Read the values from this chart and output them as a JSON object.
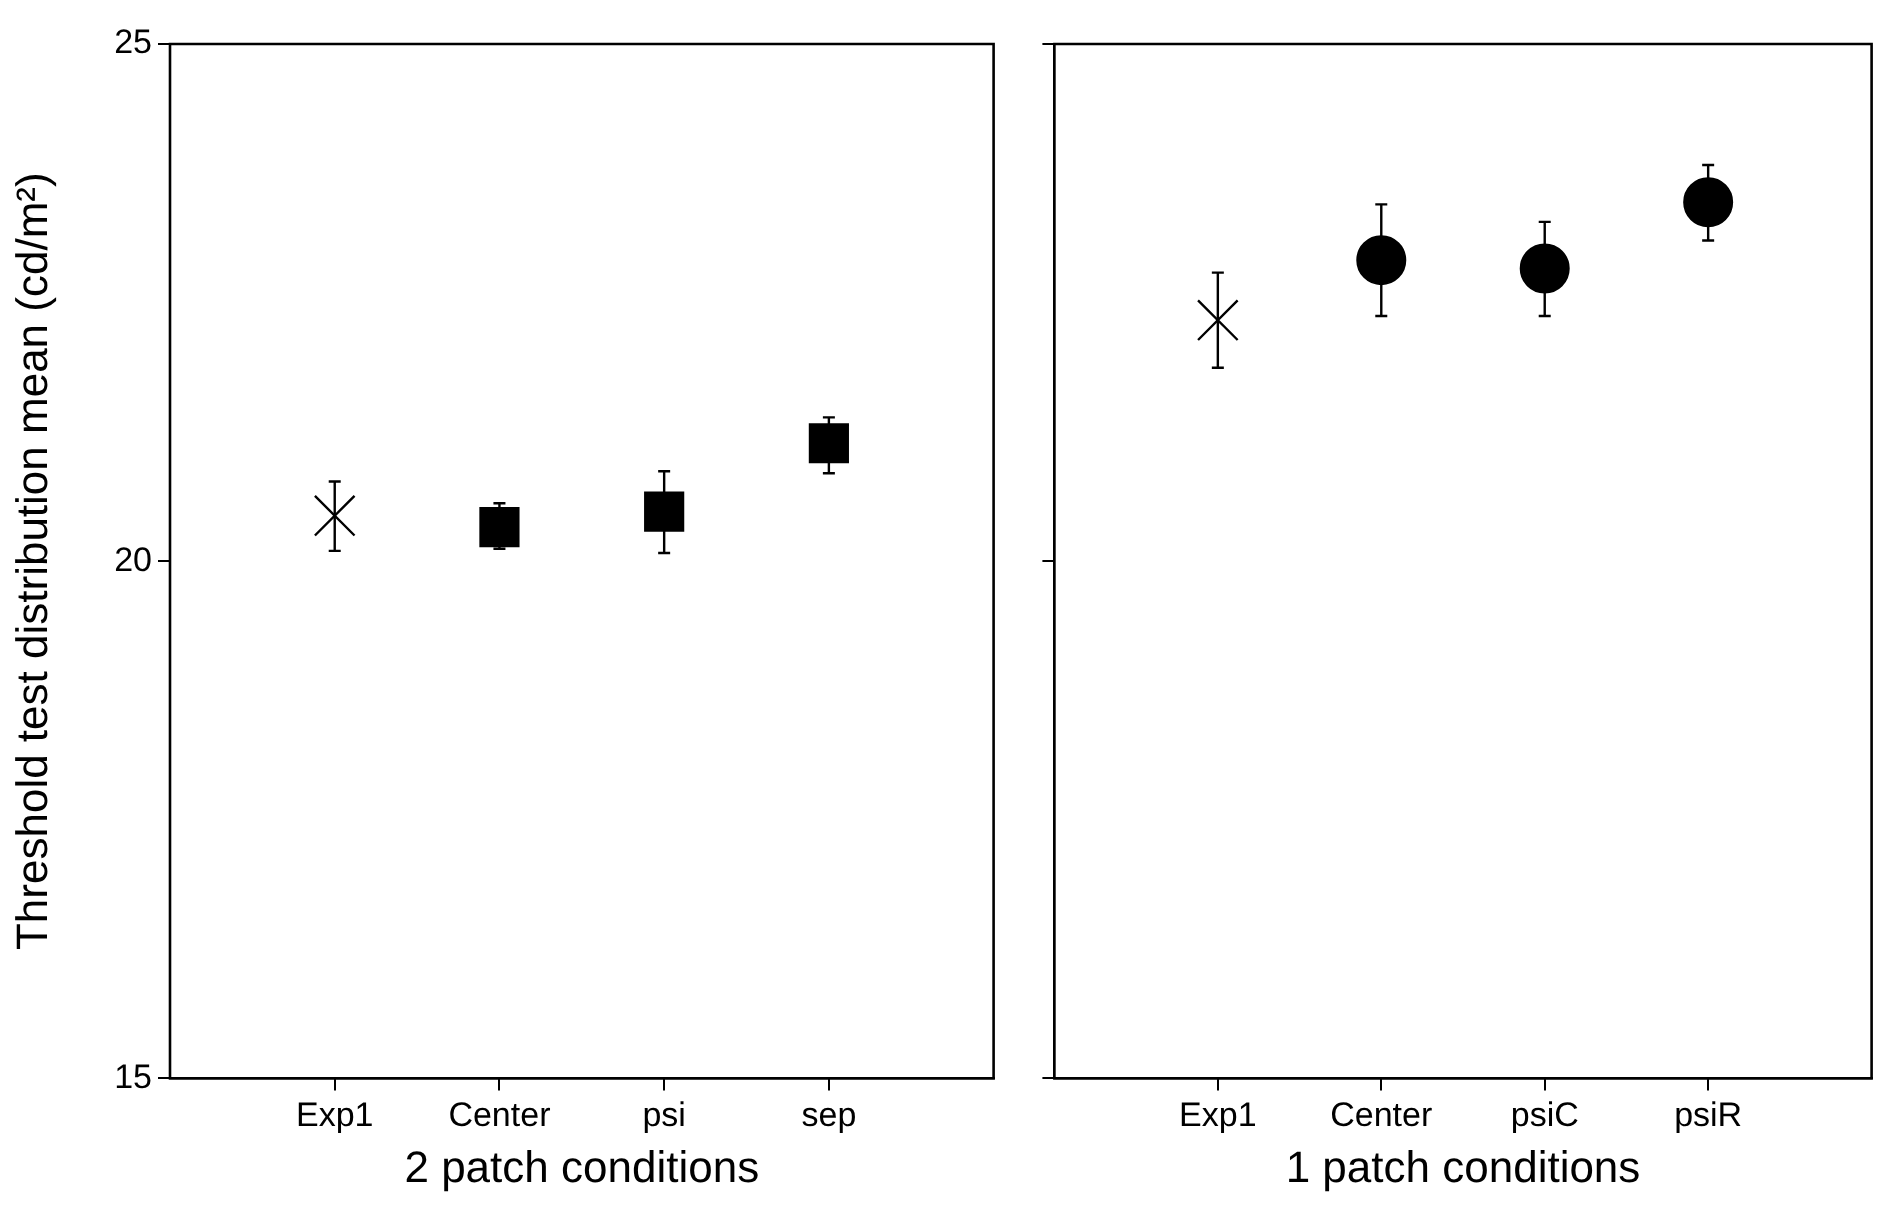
{
  "chart_data": [
    {
      "type": "scatter",
      "xlabel": "2 patch conditions",
      "ylabel": "Threshold test distribution mean (cd/m²)",
      "categories": [
        "Exp1",
        "Center",
        "psi",
        "sep"
      ],
      "ylim": [
        15,
        25
      ],
      "yticks": [
        15,
        20,
        25
      ],
      "grid": false,
      "legend": false,
      "series": [
        {
          "color": "#000000",
          "marker": "cross",
          "values": [
            20.44,
            null,
            null,
            null
          ],
          "errors": [
            [
              20.1,
              20.77
            ],
            null,
            null,
            null
          ]
        },
        {
          "color": "#000000",
          "marker": "square",
          "values": [
            null,
            20.33,
            20.48,
            21.14
          ],
          "errors": [
            null,
            [
              20.12,
              20.56
            ],
            [
              20.08,
              20.87
            ],
            [
              20.85,
              21.39
            ]
          ]
        }
      ]
    },
    {
      "type": "scatter",
      "xlabel": "1 patch conditions",
      "categories": [
        "Exp1",
        "Center",
        "psiC",
        "psiR"
      ],
      "ylim": [
        15,
        25
      ],
      "yticks": [
        15,
        20,
        25
      ],
      "tick_labels": "x",
      "grid": false,
      "legend": false,
      "series": [
        {
          "color": "#000000",
          "marker": "cross",
          "values": [
            22.33,
            null,
            null,
            null
          ],
          "errors": [
            [
              21.87,
              22.79
            ],
            null,
            null,
            null
          ]
        },
        {
          "color": "#000000",
          "marker": "circle",
          "values": [
            null,
            22.91,
            22.83,
            23.47
          ],
          "errors": [
            null,
            [
              22.37,
              23.45
            ],
            [
              22.37,
              23.28
            ],
            [
              23.1,
              23.83
            ]
          ]
        }
      ]
    }
  ]
}
